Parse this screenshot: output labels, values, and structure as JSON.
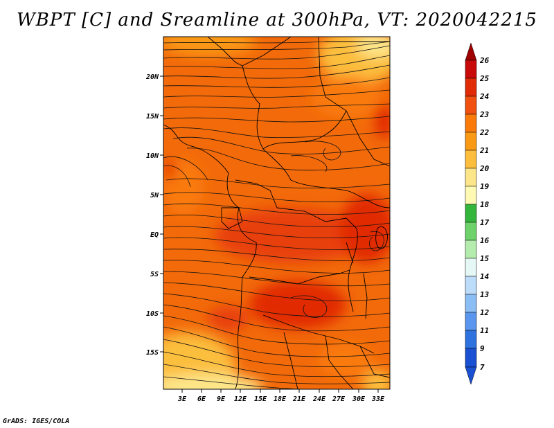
{
  "title": "WBPT [C] and Sreamline at 300hPa, VT: 2020042215",
  "credit": "GrADS: IGES/COLA",
  "map": {
    "lat_ticks": [
      "20N",
      "15N",
      "10N",
      "5N",
      "EQ",
      "5S",
      "10S",
      "15S"
    ],
    "lon_ticks": [
      "3E",
      "6E",
      "9E",
      "12E",
      "15E",
      "18E",
      "21E",
      "24E",
      "27E",
      "30E",
      "33E"
    ],
    "field": "Wet-bulb potential temperature",
    "overlay": "Streamlines"
  },
  "colorbar": {
    "labels": [
      "26",
      "25",
      "24",
      "23",
      "22",
      "21",
      "20",
      "19",
      "18",
      "17",
      "16",
      "15",
      "14",
      "13",
      "12",
      "11",
      "9",
      "7"
    ],
    "colors": {
      "c26": "#a00000",
      "c25": "#c80a0a",
      "c24": "#e12b06",
      "c23": "#f05010",
      "c22": "#fa7a0a",
      "c21": "#fa9a14",
      "c20": "#fcbe3c",
      "c19": "#fde68a",
      "c18": "#fefab4",
      "c17": "#34b53c",
      "c16": "#6ed26a",
      "c15": "#b4ecae",
      "c14": "#e6f8f6",
      "c13": "#bcdcfa",
      "c12": "#8cbef6",
      "c11": "#5a96ee",
      "c9": "#2e72e0",
      "c7": "#1a50d2"
    }
  }
}
